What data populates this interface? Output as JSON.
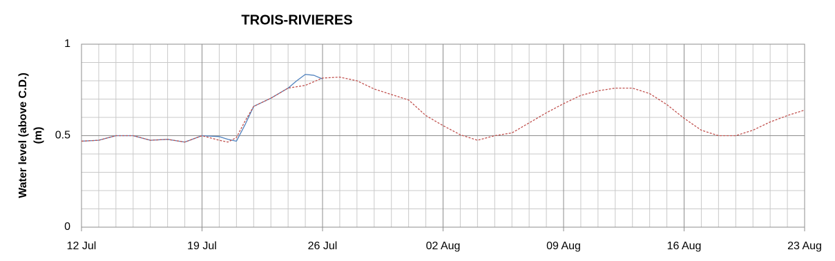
{
  "chart_data": {
    "type": "line",
    "title": "TROIS-RIVIERES",
    "ylabel": [
      "Water level (above C.D.)",
      "(m)"
    ],
    "xlim": [
      0,
      42
    ],
    "xticks": [
      {
        "value": 0,
        "label": "12 Jul"
      },
      {
        "value": 7,
        "label": "19 Jul"
      },
      {
        "value": 14,
        "label": "26 Jul"
      },
      {
        "value": 21,
        "label": "02 Aug"
      },
      {
        "value": 28,
        "label": "09 Aug"
      },
      {
        "value": 35,
        "label": "16 Aug"
      },
      {
        "value": 42,
        "label": "23 Aug"
      }
    ],
    "ylim": [
      0,
      1
    ],
    "yticks": [
      0,
      0.5,
      1
    ],
    "grid": true,
    "series": [
      {
        "color": "#4f81bd",
        "dash": false,
        "x": [
          0,
          1,
          2,
          3,
          4,
          5,
          6,
          7,
          8,
          8.5,
          9,
          9.5,
          10,
          11,
          12,
          12.5,
          13,
          13.5,
          14
        ],
        "values": [
          0.47,
          0.475,
          0.5,
          0.5,
          0.475,
          0.48,
          0.465,
          0.5,
          0.495,
          0.48,
          0.47,
          0.56,
          0.66,
          0.705,
          0.76,
          0.8,
          0.835,
          0.83,
          0.81
        ]
      },
      {
        "color": "#c0504d",
        "dash": true,
        "x": [
          0,
          1,
          2,
          3,
          4,
          5,
          6,
          7,
          8,
          8.5,
          9,
          9.5,
          10,
          11,
          12,
          13,
          14,
          15,
          16,
          17,
          18,
          19,
          20,
          21,
          22,
          23,
          24,
          25,
          26,
          27,
          28,
          29,
          30,
          31,
          32,
          33,
          34,
          35,
          36,
          37,
          38,
          39,
          40,
          41,
          42
        ],
        "values": [
          0.47,
          0.475,
          0.5,
          0.5,
          0.475,
          0.48,
          0.465,
          0.5,
          0.475,
          0.465,
          0.49,
          0.58,
          0.66,
          0.705,
          0.76,
          0.775,
          0.815,
          0.82,
          0.8,
          0.755,
          0.725,
          0.695,
          0.61,
          0.555,
          0.505,
          0.475,
          0.5,
          0.515,
          0.57,
          0.625,
          0.675,
          0.72,
          0.745,
          0.76,
          0.76,
          0.73,
          0.67,
          0.595,
          0.53,
          0.5,
          0.5,
          0.53,
          0.575,
          0.61,
          0.64
        ]
      }
    ]
  }
}
